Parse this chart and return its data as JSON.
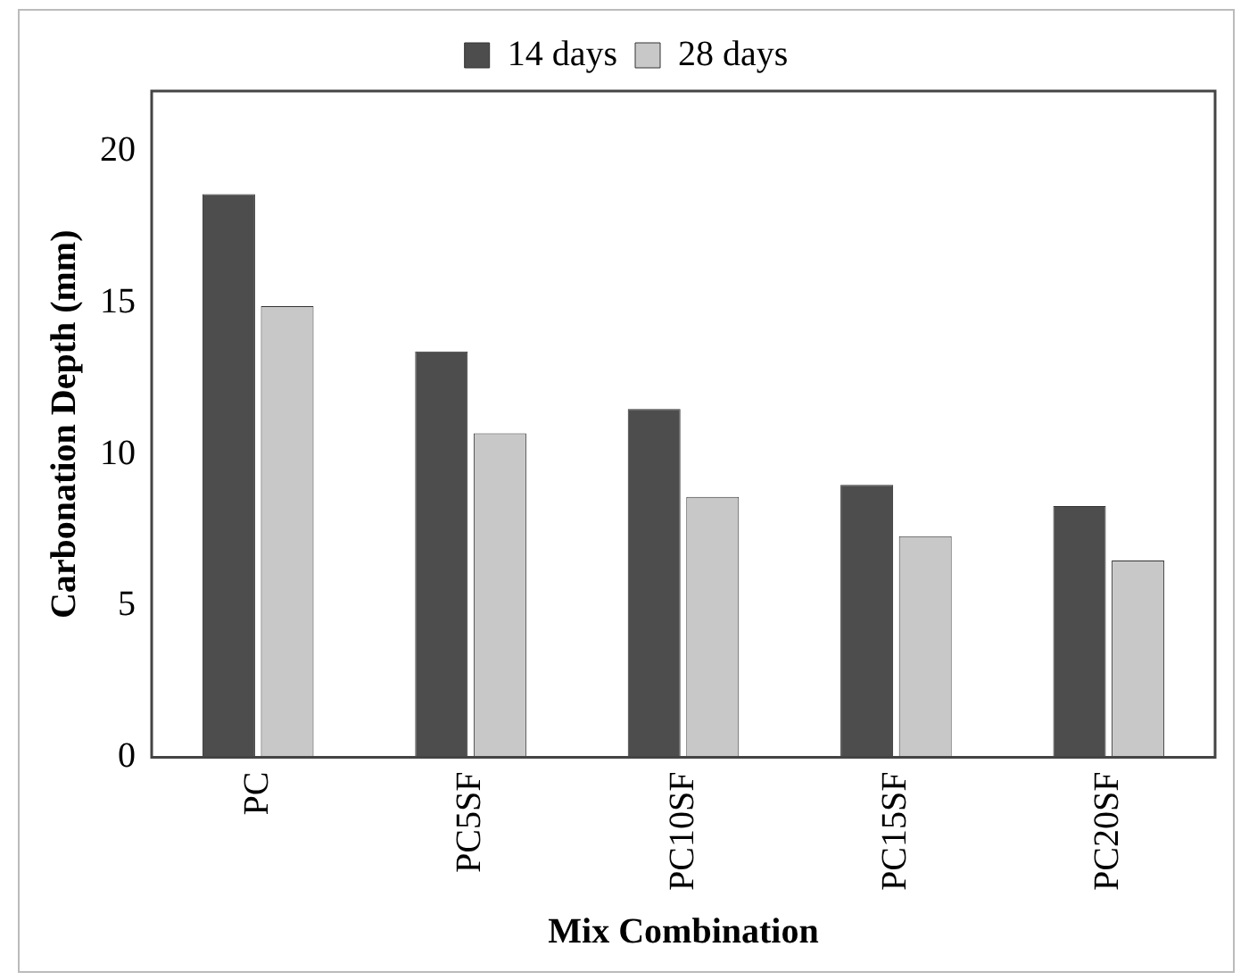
{
  "chart_data": {
    "type": "bar",
    "xlabel": "Mix Combination",
    "ylabel": "Carbonation Depth (mm)",
    "categories": [
      "PC",
      "PC5SF",
      "PC10SF",
      "PC15SF",
      "PC20SF"
    ],
    "series": [
      {
        "name": "14 days",
        "color": "#4d4d4d",
        "values": [
          18.6,
          13.4,
          11.5,
          9.0,
          8.3
        ]
      },
      {
        "name": "28 days",
        "color": "#c8c8c8",
        "values": [
          14.9,
          10.7,
          8.6,
          7.3,
          6.5
        ]
      }
    ],
    "ylim": [
      0,
      22
    ],
    "yticks": [
      0,
      5,
      10,
      15,
      20
    ],
    "grid": false,
    "legend": "top"
  }
}
